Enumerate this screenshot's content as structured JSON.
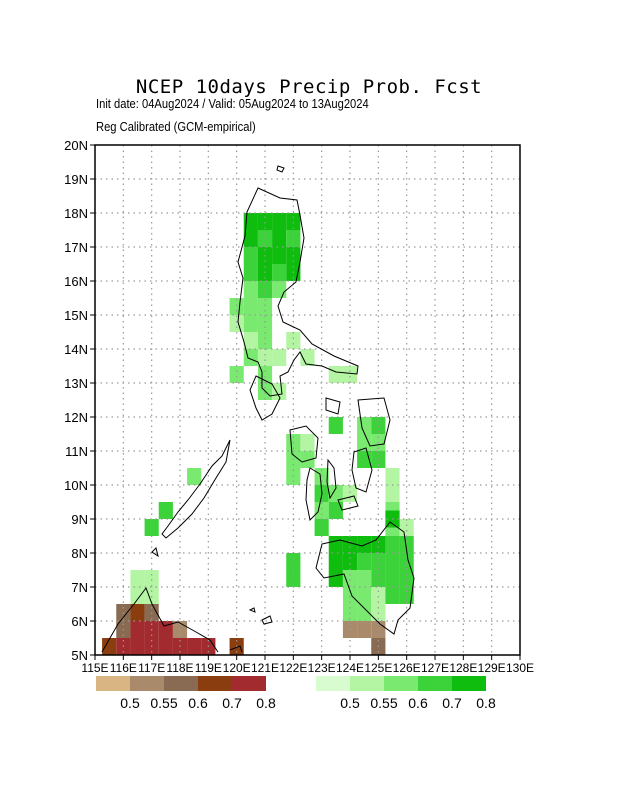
{
  "header": {
    "title": "NCEP 10days Precip Prob. Fcst",
    "subtitle_line1": "Init date: 04Aug2024 / Valid: 05Aug2024 to 13Aug2024",
    "subtitle_line2": "Reg Calibrated (GCM-empirical)"
  },
  "map": {
    "lon_range": [
      115,
      130
    ],
    "lat_range": [
      5,
      20
    ],
    "lon_tick_labels": [
      "115E",
      "116E",
      "117E",
      "118E",
      "119E",
      "120E",
      "121E",
      "122E",
      "123E",
      "124E",
      "125E",
      "126E",
      "127E",
      "128E",
      "129E",
      "130E"
    ],
    "lat_tick_labels": [
      "5N",
      "6N",
      "7N",
      "8N",
      "9N",
      "10N",
      "11N",
      "12N",
      "13N",
      "14N",
      "15N",
      "16N",
      "17N",
      "18N",
      "19N",
      "20N"
    ],
    "grid": "dotted",
    "grid_cell_deg": 0.5
  },
  "legend_dry": {
    "labels": [
      "0.5",
      "0.55",
      "0.6",
      "0.7",
      "0.8"
    ],
    "colors": [
      "#d8b583",
      "#a98b6c",
      "#886b52",
      "#8a3e0f",
      "#a12b2f"
    ]
  },
  "legend_wet": {
    "labels": [
      "0.5",
      "0.55",
      "0.6",
      "0.7",
      "0.8"
    ],
    "colors": [
      "#d8fbcf",
      "#b4f5a4",
      "#7ae970",
      "#3cd33a",
      "#0fbd0f"
    ]
  },
  "probability_cells": {
    "wet": [
      [
        120.5,
        17.75,
        4
      ],
      [
        121,
        17.75,
        4
      ],
      [
        121.5,
        17.75,
        4
      ],
      [
        122,
        17.75,
        4
      ],
      [
        120.5,
        17.25,
        4
      ],
      [
        121,
        17.25,
        3
      ],
      [
        121.5,
        17.25,
        4
      ],
      [
        122,
        17.25,
        3
      ],
      [
        120.5,
        16.75,
        3
      ],
      [
        121,
        16.75,
        4
      ],
      [
        121.5,
        16.75,
        4
      ],
      [
        122,
        16.75,
        4
      ],
      [
        120.5,
        16.25,
        3
      ],
      [
        121,
        16.25,
        4
      ],
      [
        121.5,
        16.25,
        3
      ],
      [
        122,
        16.25,
        4
      ],
      [
        120.5,
        15.75,
        2
      ],
      [
        121,
        15.75,
        3
      ],
      [
        121.5,
        15.75,
        2
      ],
      [
        120,
        15.25,
        2
      ],
      [
        120.5,
        15.25,
        2
      ],
      [
        121,
        15.25,
        2
      ],
      [
        120,
        14.75,
        1
      ],
      [
        120.5,
        14.75,
        2
      ],
      [
        121,
        14.75,
        2
      ],
      [
        120.5,
        14.25,
        1
      ],
      [
        121,
        14.25,
        2
      ],
      [
        122,
        14.25,
        1
      ],
      [
        120.5,
        13.75,
        2
      ],
      [
        121,
        13.75,
        1
      ],
      [
        121.5,
        13.75,
        1
      ],
      [
        122.5,
        13.75,
        1
      ],
      [
        120,
        13.25,
        2
      ],
      [
        121,
        13.25,
        2
      ],
      [
        123.5,
        13.25,
        1
      ],
      [
        124,
        13.25,
        1
      ],
      [
        121,
        12.75,
        2
      ],
      [
        121.5,
        12.75,
        1
      ],
      [
        123.5,
        11.75,
        3
      ],
      [
        124.5,
        11.75,
        2
      ],
      [
        125,
        11.75,
        3
      ],
      [
        122,
        11.25,
        2
      ],
      [
        122.5,
        11.25,
        1
      ],
      [
        124.5,
        11.25,
        2
      ],
      [
        125,
        11.25,
        2
      ],
      [
        122,
        10.75,
        2
      ],
      [
        122.5,
        10.75,
        2
      ],
      [
        124.5,
        10.75,
        3
      ],
      [
        125,
        10.75,
        3
      ],
      [
        122,
        10.25,
        2
      ],
      [
        123,
        10.25,
        2
      ],
      [
        125.5,
        10.25,
        1
      ],
      [
        123,
        9.75,
        3
      ],
      [
        123.5,
        9.75,
        2
      ],
      [
        124,
        9.75,
        1
      ],
      [
        125.5,
        9.75,
        1
      ],
      [
        123,
        9.25,
        2
      ],
      [
        123.5,
        9.25,
        3
      ],
      [
        125.5,
        9.25,
        2
      ],
      [
        123,
        8.75,
        3
      ],
      [
        125.5,
        8.75,
        2
      ],
      [
        126,
        8.75,
        1
      ],
      [
        125.5,
        9.0,
        4
      ],
      [
        123.5,
        8.25,
        4
      ],
      [
        124,
        8.25,
        4
      ],
      [
        124.5,
        8.25,
        4
      ],
      [
        125,
        8.25,
        4
      ],
      [
        125.5,
        8.25,
        3
      ],
      [
        126,
        8.25,
        3
      ],
      [
        122,
        7.75,
        3
      ],
      [
        123.5,
        7.75,
        4
      ],
      [
        124,
        7.75,
        4
      ],
      [
        124.5,
        7.75,
        3
      ],
      [
        125,
        7.75,
        3
      ],
      [
        125.5,
        7.75,
        3
      ],
      [
        126,
        7.75,
        3
      ],
      [
        122,
        7.25,
        3
      ],
      [
        123.5,
        7.25,
        4
      ],
      [
        124,
        7.25,
        2
      ],
      [
        124.5,
        7.25,
        2
      ],
      [
        125,
        7.25,
        3
      ],
      [
        125.5,
        7.25,
        3
      ],
      [
        126,
        7.25,
        3
      ],
      [
        124,
        6.75,
        2
      ],
      [
        124.5,
        6.75,
        2
      ],
      [
        125,
        6.75,
        1
      ],
      [
        125.5,
        6.75,
        3
      ],
      [
        126,
        6.75,
        3
      ],
      [
        124,
        6.25,
        2
      ],
      [
        124.5,
        6.25,
        2
      ],
      [
        125,
        6.25,
        1
      ],
      [
        118.5,
        10.25,
        2
      ],
      [
        117.5,
        9.25,
        3
      ],
      [
        117,
        8.75,
        3
      ],
      [
        116.5,
        7.25,
        1
      ],
      [
        117,
        7.25,
        1
      ],
      [
        116.5,
        6.75,
        1
      ],
      [
        117,
        6.75,
        1
      ]
    ],
    "dry": [
      [
        124,
        5.75,
        1
      ],
      [
        124.5,
        5.75,
        1
      ],
      [
        125,
        5.75,
        1
      ],
      [
        125,
        5.25,
        2
      ],
      [
        116,
        6.25,
        2
      ],
      [
        116.5,
        6.25,
        3
      ],
      [
        117,
        6.25,
        2
      ],
      [
        116,
        5.75,
        2
      ],
      [
        116.5,
        5.75,
        4
      ],
      [
        117,
        5.75,
        4
      ],
      [
        117.5,
        5.75,
        4
      ],
      [
        118,
        5.75,
        1
      ],
      [
        115.5,
        5.25,
        3
      ],
      [
        116,
        5.25,
        4
      ],
      [
        116.5,
        5.25,
        4
      ],
      [
        117,
        5.25,
        4
      ],
      [
        117.5,
        5.25,
        4
      ],
      [
        118,
        5.25,
        4
      ],
      [
        118.5,
        5.25,
        4
      ],
      [
        119,
        5.25,
        4
      ],
      [
        120,
        5.25,
        3
      ]
    ]
  }
}
